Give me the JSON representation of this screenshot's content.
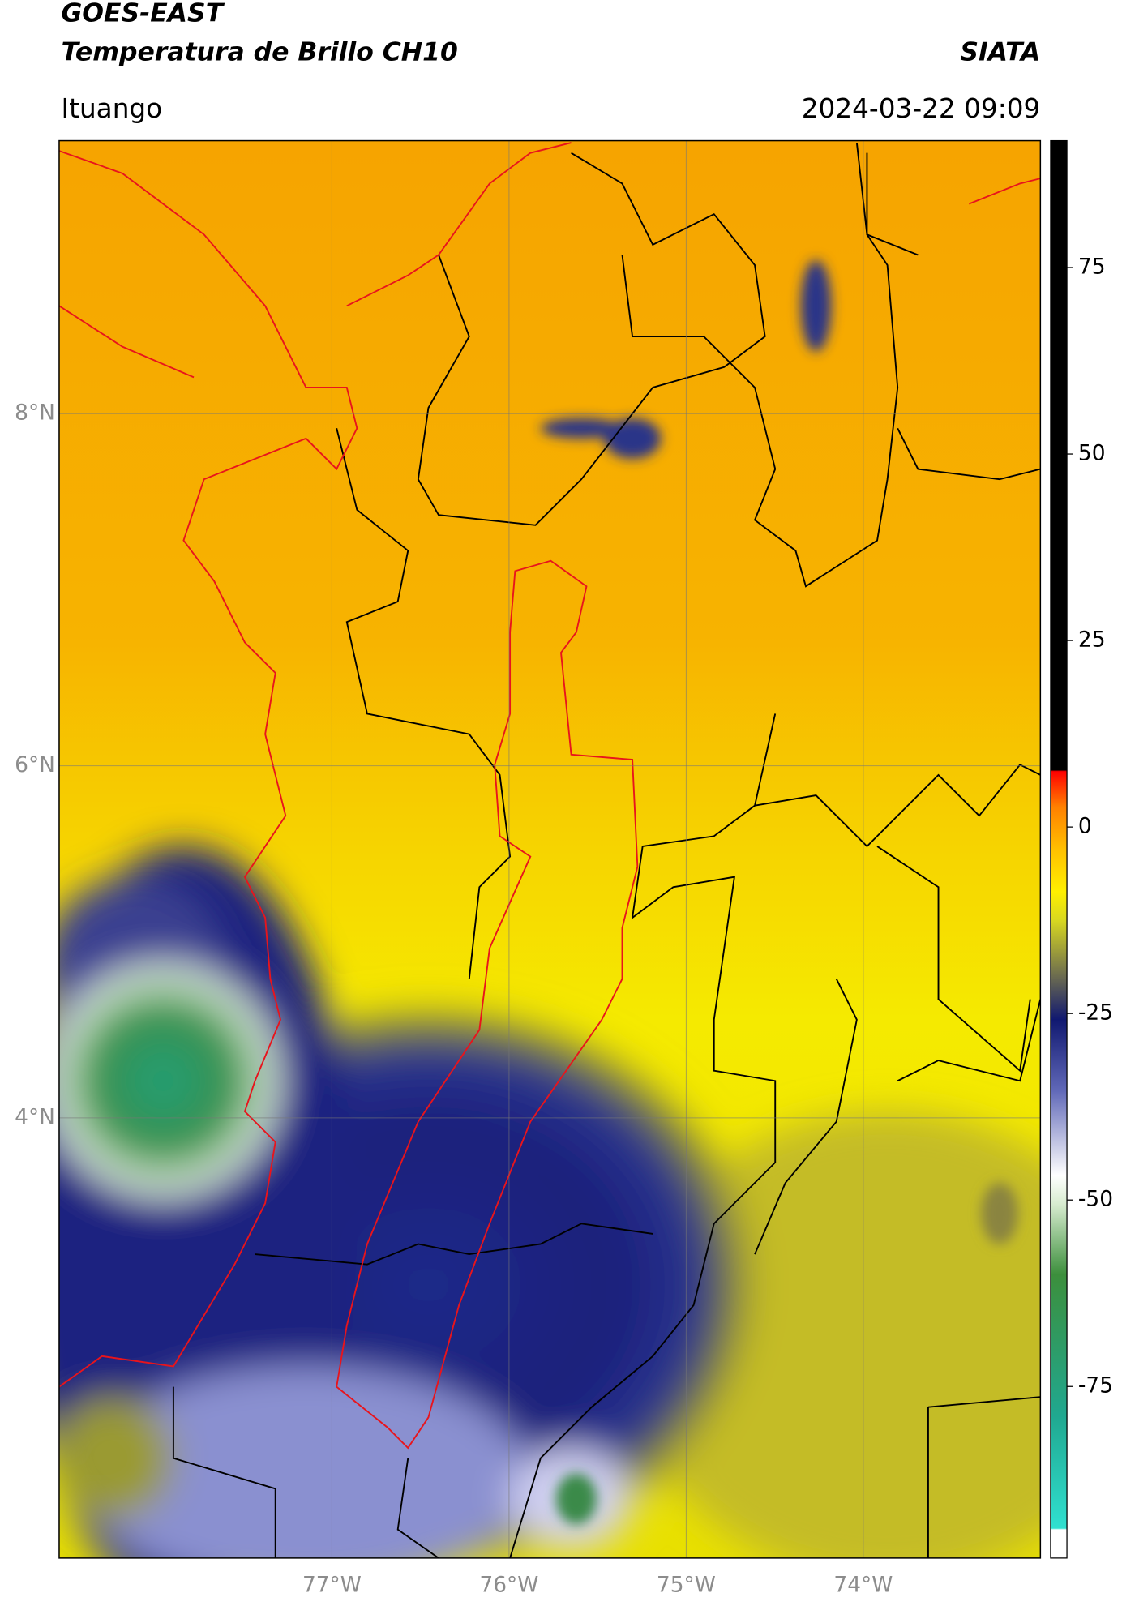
{
  "header": {
    "title": "GOES-EAST",
    "subtitle": "Temperatura de Brillo CH10",
    "source": "SIATA",
    "region": "Ituango",
    "datetime": "2024-03-22 09:09"
  },
  "map": {
    "lon_range": [
      -78.54,
      -73.0
    ],
    "lat_range": [
      1.5,
      9.55
    ],
    "lon_ticks": [
      {
        "value": -77,
        "label": "77°W"
      },
      {
        "value": -76,
        "label": "76°W"
      },
      {
        "value": -75,
        "label": "75°W"
      },
      {
        "value": -74,
        "label": "74°W"
      }
    ],
    "lat_ticks": [
      {
        "value": 8,
        "label": "8°N"
      },
      {
        "value": 6,
        "label": "6°N"
      },
      {
        "value": 4,
        "label": "4°N"
      }
    ]
  },
  "colorbar": {
    "range": [
      -98,
      92
    ],
    "ticks": [
      75,
      50,
      25,
      0,
      -25,
      -50,
      -75
    ]
  }
}
